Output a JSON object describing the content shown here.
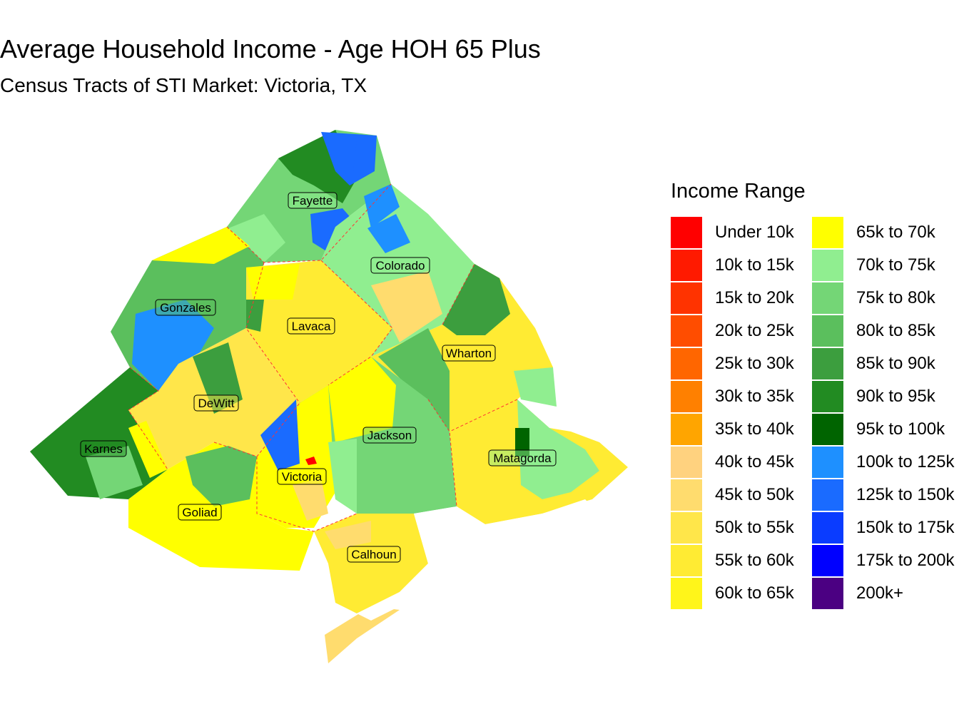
{
  "title": "Average Household Income - Age HOH 65 Plus",
  "subtitle": "Census Tracts of STI Market: Victoria, TX",
  "legend": {
    "title": "Income Range",
    "items": [
      {
        "label": "Under 10k",
        "color": "#FF0000"
      },
      {
        "label": "10k to 15k",
        "color": "#FF1A00"
      },
      {
        "label": "15k to 20k",
        "color": "#FF3300"
      },
      {
        "label": "20k to 25k",
        "color": "#FF4D00"
      },
      {
        "label": "25k to 30k",
        "color": "#FF6600"
      },
      {
        "label": "30k to 35k",
        "color": "#FF8000"
      },
      {
        "label": "35k to 40k",
        "color": "#FFA500"
      },
      {
        "label": "40k to 45k",
        "color": "#FFD27F"
      },
      {
        "label": "45k to 50k",
        "color": "#FFDC6E"
      },
      {
        "label": "50k to 55k",
        "color": "#FFE64A"
      },
      {
        "label": "55k to 60k",
        "color": "#FFEB33"
      },
      {
        "label": "60k to 65k",
        "color": "#FFF51A"
      },
      {
        "label": "65k to 70k",
        "color": "#FFFF00"
      },
      {
        "label": "70k to 75k",
        "color": "#90EE90"
      },
      {
        "label": "75k to 80k",
        "color": "#74D676"
      },
      {
        "label": "80k to 85k",
        "color": "#5BBF5D"
      },
      {
        "label": "85k to 90k",
        "color": "#3C9E3E"
      },
      {
        "label": "90k to 95k",
        "color": "#228B22"
      },
      {
        "label": "95k to 100k",
        "color": "#006400"
      },
      {
        "label": "100k to 125k",
        "color": "#1E90FF"
      },
      {
        "label": "125k to 150k",
        "color": "#1A6BFF"
      },
      {
        "label": "150k to 175k",
        "color": "#0A3CFF"
      },
      {
        "label": "175k to 200k",
        "color": "#0000FF"
      },
      {
        "label": "200k+",
        "color": "#4B0082"
      }
    ]
  },
  "counties": [
    {
      "name": "Fayette"
    },
    {
      "name": "Colorado"
    },
    {
      "name": "Gonzales"
    },
    {
      "name": "Lavaca"
    },
    {
      "name": "Wharton"
    },
    {
      "name": "DeWitt"
    },
    {
      "name": "Jackson"
    },
    {
      "name": "Karnes"
    },
    {
      "name": "Matagorda"
    },
    {
      "name": "Victoria"
    },
    {
      "name": "Goliad"
    },
    {
      "name": "Calhoun"
    }
  ]
}
